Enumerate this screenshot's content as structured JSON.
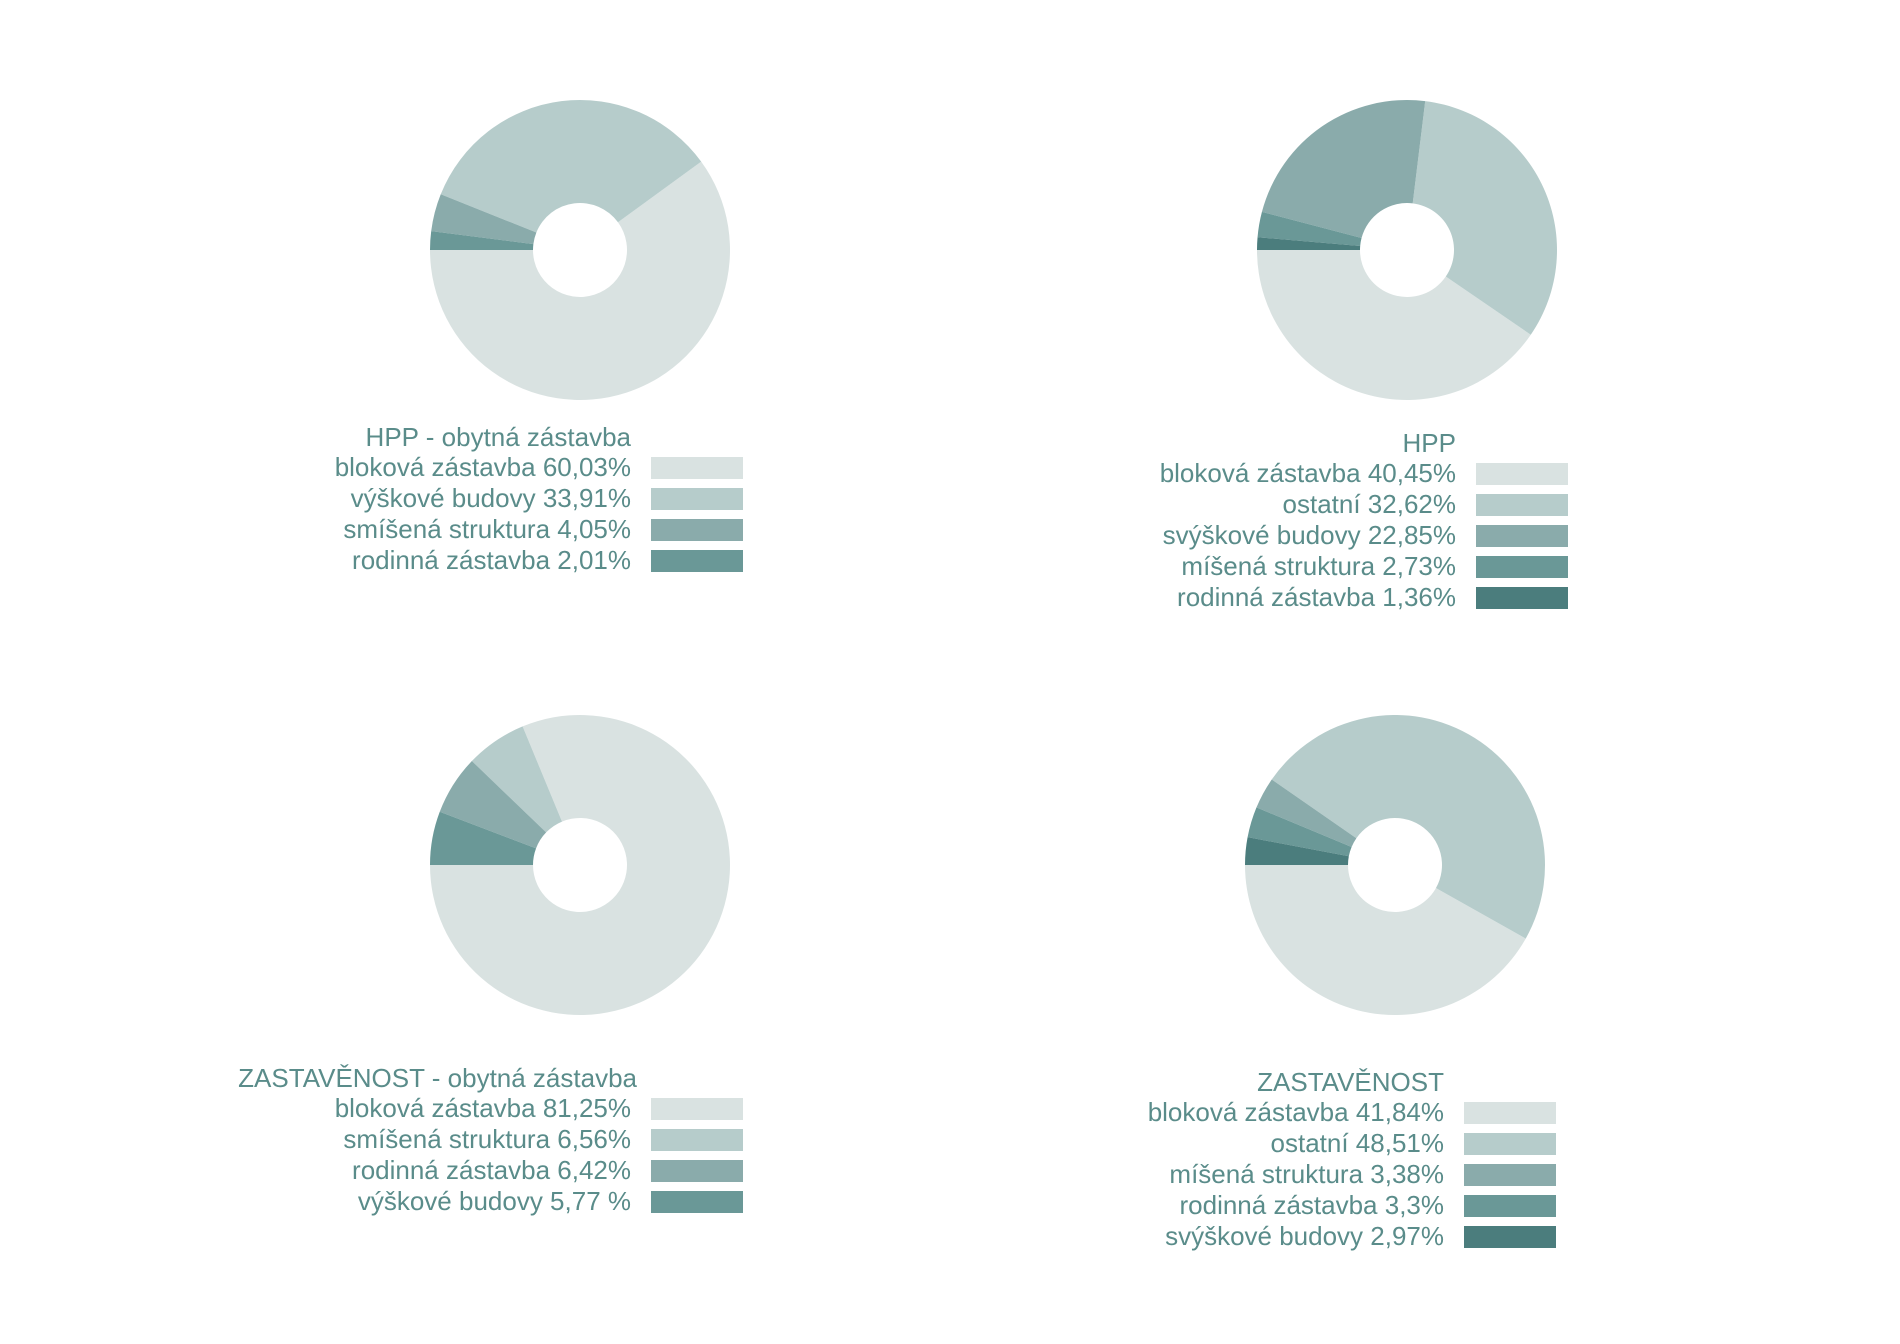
{
  "chart_data": [
    {
      "type": "pie",
      "title": "HPP - obytná zástavba",
      "slices": [
        {
          "label": "bloková zástavba 60,03%",
          "value": 60.03,
          "color": "#d9e2e1"
        },
        {
          "label": "výškové budovy 33,91%",
          "value": 33.91,
          "color": "#b6cccb"
        },
        {
          "label": "smíšená struktura 4,05%",
          "value": 4.05,
          "color": "#8aabab"
        },
        {
          "label": "rodinná zástavba 2,01%",
          "value": 2.01,
          "color": "#6a9897"
        }
      ]
    },
    {
      "type": "pie",
      "title": "HPP",
      "slices": [
        {
          "label": "bloková zástavba 40,45%",
          "value": 40.45,
          "color": "#d9e2e1"
        },
        {
          "label": "ostatní 32,62%",
          "value": 32.62,
          "color": "#b6cccb"
        },
        {
          "label": "svýškové budovy 22,85%",
          "value": 22.85,
          "color": "#8aabab"
        },
        {
          "label": "míšená struktura 2,73%",
          "value": 2.73,
          "color": "#6a9897"
        },
        {
          "label": "rodinná zástavba 1,36%",
          "value": 1.36,
          "color": "#4b7d7d"
        }
      ]
    },
    {
      "type": "pie",
      "title": "ZASTAVĚNOST - obytná zástavba",
      "slices": [
        {
          "label": "bloková zástavba 81,25%",
          "value": 81.25,
          "color": "#d9e2e1"
        },
        {
          "label": "smíšená struktura 6,56%",
          "value": 6.56,
          "color": "#b6cccb"
        },
        {
          "label": "rodinná zástavba 6,42%",
          "value": 6.42,
          "color": "#8aabab"
        },
        {
          "label": "výškové budovy 5,77 %",
          "value": 5.77,
          "color": "#6a9897"
        }
      ]
    },
    {
      "type": "pie",
      "title": "ZASTAVĚNOST",
      "slices": [
        {
          "label": "bloková zástavba 41,84%",
          "value": 41.84,
          "color": "#d9e2e1"
        },
        {
          "label": "ostatní 48,51%",
          "value": 48.51,
          "color": "#b6cccb"
        },
        {
          "label": "míšená struktura 3,38%",
          "value": 3.38,
          "color": "#8aabab"
        },
        {
          "label": "rodinná zástavba 3,3%",
          "value": 3.3,
          "color": "#6a9897"
        },
        {
          "label": "svýškové budovy 2,97%",
          "value": 2.97,
          "color": "#4b7d7d"
        }
      ]
    }
  ]
}
